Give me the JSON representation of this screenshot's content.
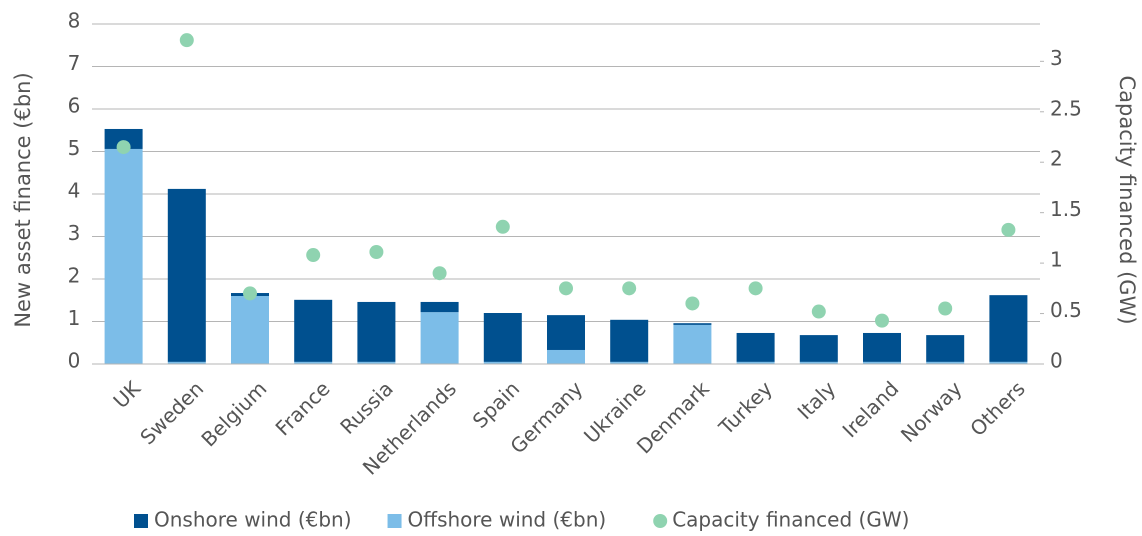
{
  "chart_data": {
    "type": "bar",
    "stacked": true,
    "y_label": "New asset finance (€bn)",
    "y2_label": "Capacity financed (GW)",
    "categories": [
      "UK",
      "Sweden",
      "Belgium",
      "France",
      "Russia",
      "Netherlands",
      "Spain",
      "Germany",
      "Ukraine",
      "Denmark",
      "Turkey",
      "Italy",
      "Ireland",
      "Norway",
      "Others"
    ],
    "series": [
      {
        "name": "Onshore wind (€bn)",
        "type": "bar",
        "color": "#00508f",
        "values": [
          0.47,
          4.07,
          0.07,
          1.46,
          1.41,
          0.24,
          1.15,
          0.82,
          0.99,
          0.04,
          0.68,
          0.63,
          0.68,
          0.63,
          1.57
        ]
      },
      {
        "name": "Offshore wind (€bn)",
        "type": "bar",
        "color": "#7cbde8",
        "values": [
          5.06,
          0.05,
          1.6,
          0.05,
          0.05,
          1.22,
          0.05,
          0.33,
          0.05,
          0.92,
          0.05,
          0.05,
          0.05,
          0.05,
          0.05
        ]
      },
      {
        "name": "Capacity financed (GW)",
        "type": "scatter",
        "axis": "y2",
        "color": "#8fd3b0",
        "values": [
          2.15,
          3.21,
          0.7,
          1.08,
          1.11,
          0.9,
          1.36,
          0.75,
          0.75,
          0.6,
          0.75,
          0.52,
          0.43,
          0.55,
          1.33
        ]
      }
    ],
    "ylim": [
      0,
      8
    ],
    "yticks": [
      0,
      1,
      2,
      3,
      4,
      5,
      6,
      7,
      8
    ],
    "y2lim": [
      0,
      3.37
    ],
    "y2ticks": [
      0,
      0.5,
      1,
      1.5,
      2,
      2.5,
      3
    ],
    "grid": true,
    "legend": "bottom"
  }
}
